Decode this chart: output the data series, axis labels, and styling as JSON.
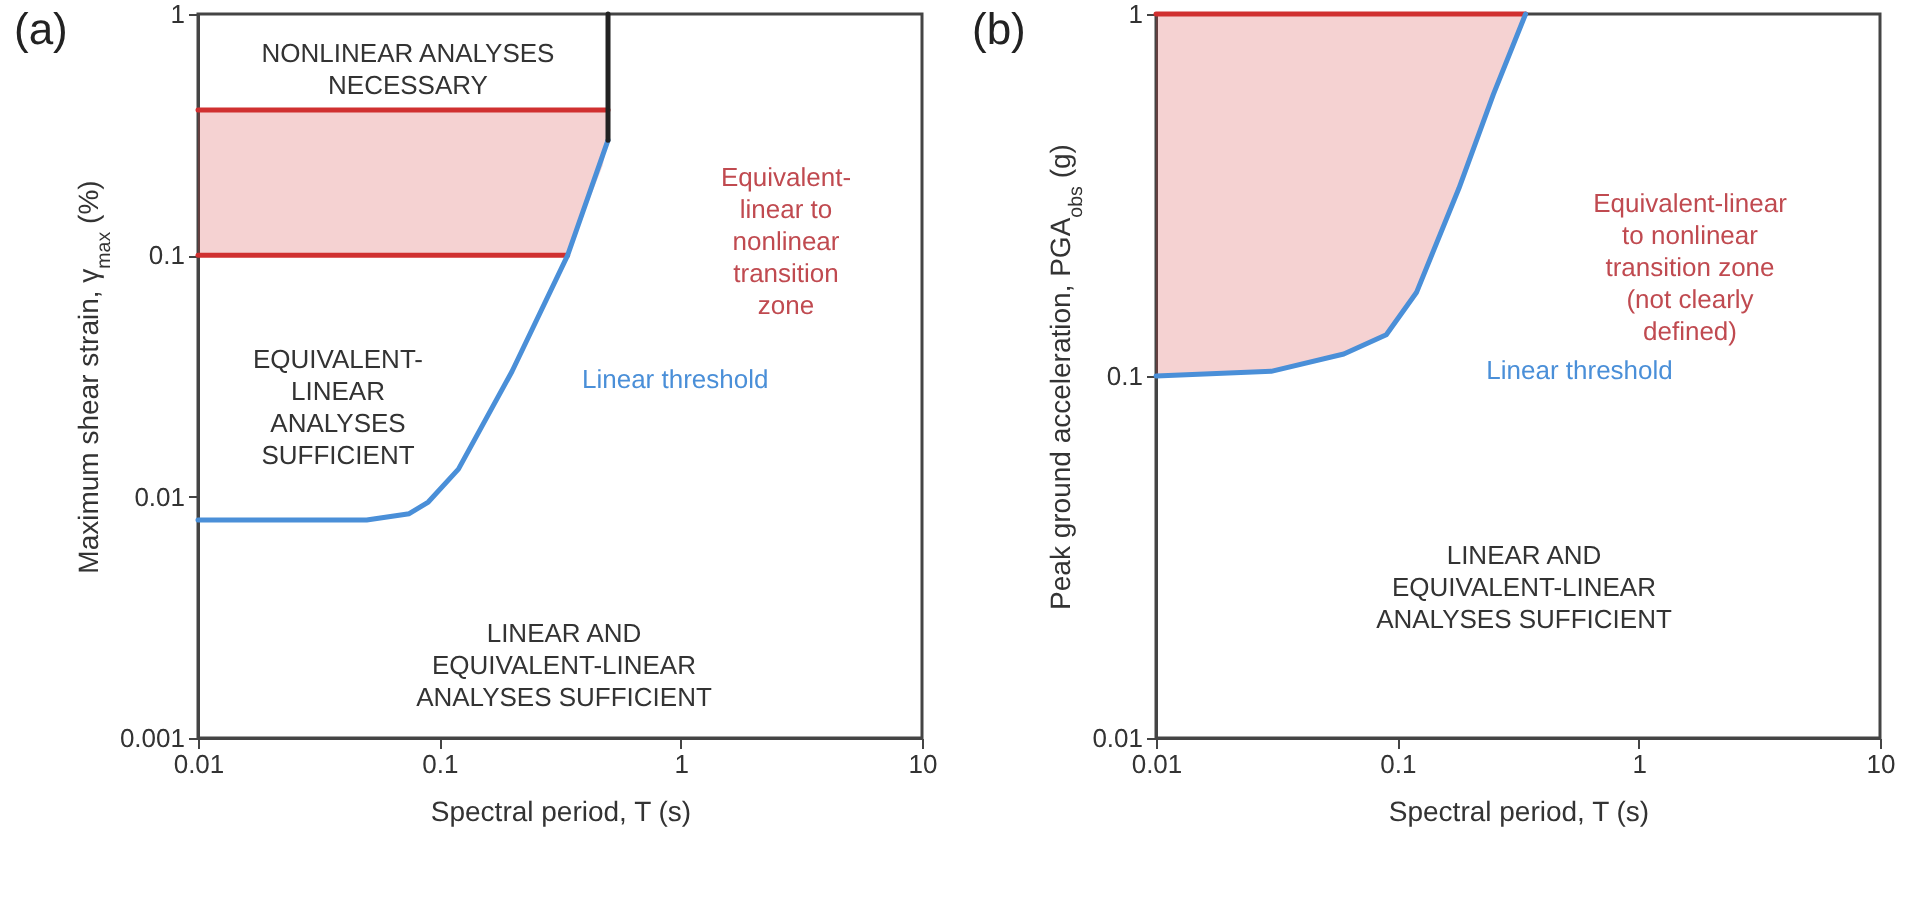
{
  "chart_data": [
    {
      "type": "line",
      "title": "(a)",
      "xlabel": "Spectral period, T (s)",
      "ylabel": "Maximum shear strain, γ$_{max}$ (%)",
      "log": "xy",
      "grid": false,
      "legend": false,
      "marker": "none",
      "xlim": [
        0.01,
        10
      ],
      "xticks": [
        0.01,
        0.1,
        1,
        10
      ],
      "ylim": [
        0.001,
        1
      ],
      "yticks": [
        0.001,
        0.01,
        0.1,
        1
      ],
      "series": [
        {
          "color": "#d03030",
          "x": [
            0.01,
            0.34
          ],
          "values": [
            0.1,
            0.1
          ]
        },
        {
          "color": "#d03030",
          "x": [
            0.01,
            0.34,
            0.475,
            0.5
          ],
          "values": [
            0.4,
            0.4,
            0.4,
            0.4
          ],
          "lower": [
            0.1,
            0.1,
            0.235,
            0.3
          ],
          "upper": [
            0.4,
            0.4,
            0.4,
            0.4
          ]
        },
        {
          "name": "Linear threshold",
          "color": "#4a8fd8",
          "x": [
            0.01,
            0.05,
            0.075,
            0.09,
            0.12,
            0.2,
            0.34,
            0.5
          ],
          "values": [
            0.008,
            0.008,
            0.0085,
            0.0095,
            0.013,
            0.033,
            0.1,
            0.3
          ]
        },
        {
          "color": "#222222",
          "x": [
            0.5,
            0.5
          ],
          "values": [
            0.3,
            1
          ]
        }
      ],
      "annotations": [
        "NONLINEAR ANALYSES\nNECESSARY",
        "EQUIVALENT-\nLINEAR\nANALYSES\nSUFFICIENT",
        "Equivalent-\nlinear to\nnonlinear\ntransition\nzone",
        "LINEAR AND\nEQUIVALENT-LINEAR\nANALYSES SUFFICIENT"
      ]
    },
    {
      "type": "line",
      "title": "(b)",
      "xlabel": "Spectral period, T (s)",
      "ylabel": "Peak ground acceleration, PGA$_{obs}$ (g)",
      "log": "xy",
      "grid": false,
      "legend": false,
      "marker": "none",
      "xlim": [
        0.01,
        10
      ],
      "xticks": [
        0.01,
        0.1,
        1,
        10
      ],
      "ylim": [
        0.01,
        1
      ],
      "yticks": [
        0.01,
        0.1,
        1
      ],
      "series": [
        {
          "color": "#d03030",
          "x": [
            0.01,
            0.03,
            0.06,
            0.09,
            0.12,
            0.18,
            0.25,
            0.34
          ],
          "values": [
            1,
            1,
            1,
            1,
            1,
            1,
            1,
            1
          ],
          "lower": [
            0.1,
            0.103,
            0.115,
            0.13,
            0.17,
            0.33,
            0.6,
            1
          ],
          "upper": [
            1,
            1,
            1,
            1,
            1,
            1,
            1,
            1
          ]
        },
        {
          "name": "Linear threshold",
          "color": "#4a8fd8",
          "x": [
            0.01,
            0.03,
            0.06,
            0.09,
            0.12,
            0.18,
            0.25,
            0.34
          ],
          "values": [
            0.1,
            0.103,
            0.115,
            0.13,
            0.17,
            0.33,
            0.6,
            1
          ]
        }
      ],
      "annotations": [
        "Equivalent-linear\nto nonlinear\ntransition zone\n(not clearly\ndefined)",
        "LINEAR AND\nEQUIVALENT-LINEAR\nANALYSES SUFFICIENT"
      ]
    }
  ]
}
